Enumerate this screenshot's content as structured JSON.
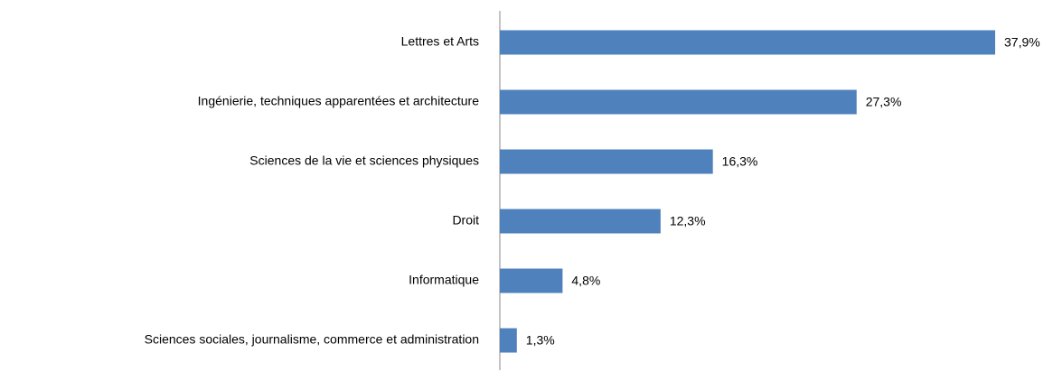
{
  "chart_data": {
    "type": "bar",
    "orientation": "horizontal",
    "categories": [
      "Lettres et Arts",
      "Ingénierie, techniques apparentées et architecture",
      "Sciences de la vie et sciences physiques",
      "Droit",
      "Informatique",
      "Sciences sociales, journalisme, commerce et administration"
    ],
    "values": [
      37.9,
      27.3,
      16.3,
      12.3,
      4.8,
      1.3
    ],
    "value_labels": [
      "37,9%",
      "27,3%",
      "16,3%",
      "12,3%",
      "4,8%",
      "1,3%"
    ],
    "color": "#4f81bd"
  }
}
